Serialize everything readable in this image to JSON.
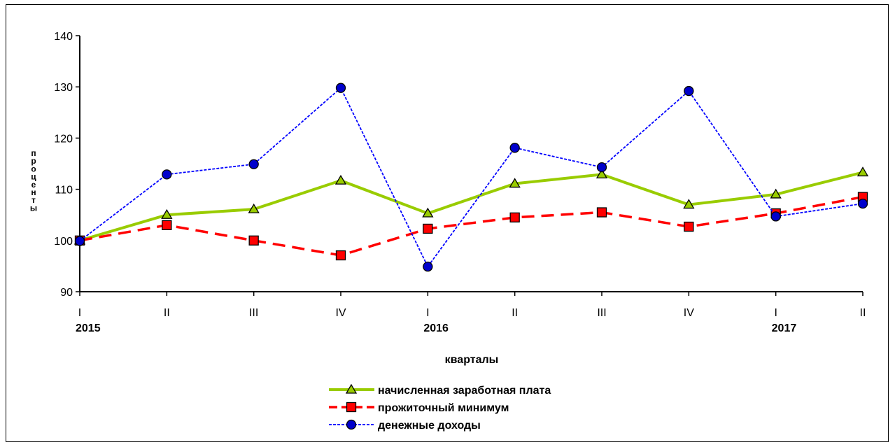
{
  "chart_data": {
    "type": "line",
    "ylabel": "проценты",
    "xlabel": "кварталы",
    "ylim": [
      90,
      140
    ],
    "yticks": [
      90,
      100,
      110,
      120,
      130,
      140
    ],
    "categories": [
      "I",
      "II",
      "III",
      "IV",
      "I",
      "II",
      "III",
      "IV",
      "I",
      "II"
    ],
    "years": [
      {
        "label": "2015",
        "index": 0
      },
      {
        "label": "2016",
        "index": 4
      },
      {
        "label": "2017",
        "index": 8
      }
    ],
    "grid": false,
    "legend_position": "bottom-center",
    "series": [
      {
        "name": "начисленная заработная плата",
        "color": "#99cc00",
        "marker": "triangle",
        "marker_fill": "#99cc00",
        "line_style": "solid",
        "values": [
          100,
          105,
          106.1,
          111.7,
          105.3,
          111.1,
          112.9,
          107,
          109,
          113.3
        ]
      },
      {
        "name": "прожиточный минимум",
        "color": "#ff0000",
        "marker": "square",
        "marker_fill": "#ff0000",
        "line_style": "dashed",
        "values": [
          100,
          103,
          100,
          97.1,
          102.3,
          104.5,
          105.5,
          102.7,
          105.3,
          108.5
        ]
      },
      {
        "name": "денежные доходы",
        "color": "#0000ff",
        "marker": "diamond",
        "marker_fill": "#0000cc",
        "line_style": "dotted",
        "values": [
          99.9,
          112.9,
          114.9,
          129.8,
          94.9,
          118.1,
          114.3,
          129.2,
          104.7,
          107.2
        ]
      }
    ]
  }
}
